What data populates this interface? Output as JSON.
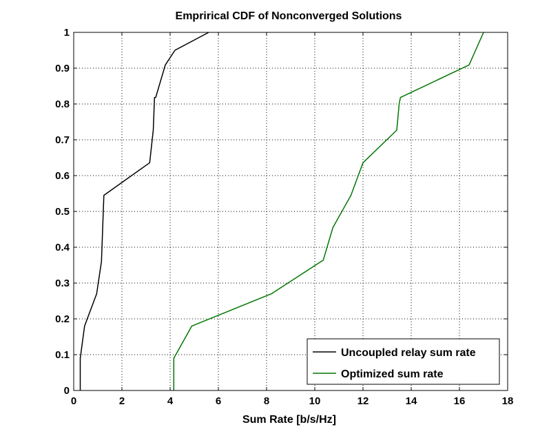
{
  "chart_data": {
    "type": "line",
    "title": "Emprirical CDF of Nonconverged Solutions",
    "xlabel": "Sum Rate [b/s/Hz]",
    "ylabel": "",
    "xlim": [
      0,
      18
    ],
    "ylim": [
      0,
      1
    ],
    "xticks": [
      "0",
      "2",
      "4",
      "6",
      "8",
      "10",
      "12",
      "14",
      "16",
      "18"
    ],
    "yticks": [
      "0",
      "0.1",
      "0.2",
      "0.3",
      "0.4",
      "0.5",
      "0.6",
      "0.7",
      "0.8",
      "0.9",
      "1"
    ],
    "grid": true,
    "legend_position": "bottom-right",
    "series": [
      {
        "name": "Uncoupled relay sum rate",
        "color": "#000000",
        "x": [
          0.27,
          0.27,
          0.45,
          0.95,
          1.15,
          1.2,
          1.25,
          3.15,
          3.3,
          3.35,
          3.4,
          3.8,
          4.2,
          5.6
        ],
        "y": [
          0,
          0.09,
          0.18,
          0.27,
          0.36,
          0.45,
          0.545,
          0.636,
          0.727,
          0.818,
          0.818,
          0.909,
          0.95,
          1.0
        ]
      },
      {
        "name": "Optimized sum rate",
        "color": "#007700",
        "x": [
          4.15,
          4.15,
          4.9,
          8.2,
          10.35,
          10.75,
          11.5,
          12.0,
          13.4,
          13.5,
          13.55,
          16.4,
          17.0
        ],
        "y": [
          0,
          0.09,
          0.18,
          0.27,
          0.364,
          0.455,
          0.545,
          0.636,
          0.727,
          0.8,
          0.818,
          0.909,
          1.0
        ]
      }
    ]
  }
}
